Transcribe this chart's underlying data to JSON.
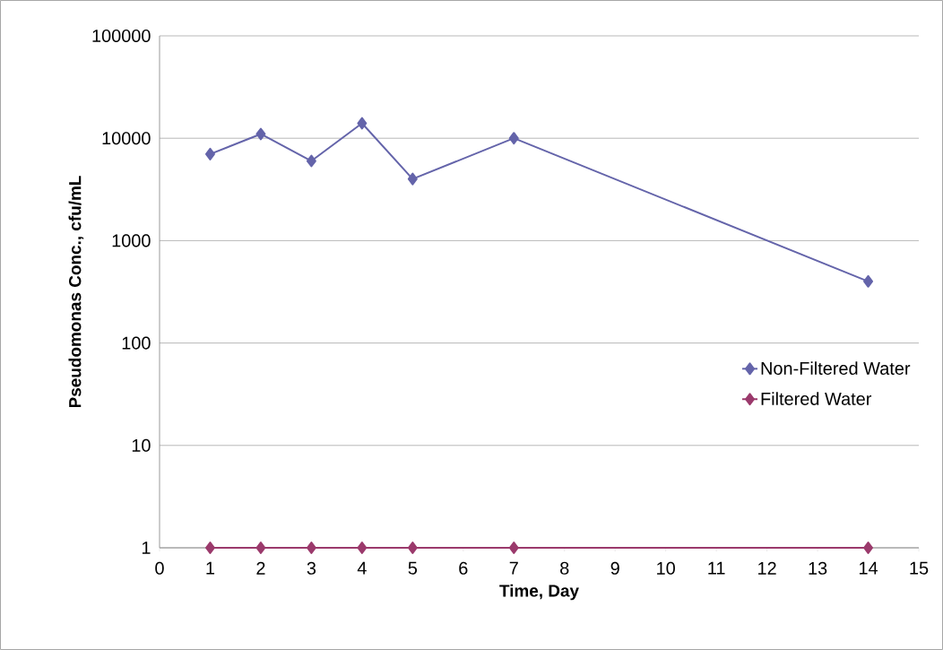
{
  "chart_data": {
    "type": "line",
    "xlabel": "Time, Day",
    "ylabel": "Pseudomonas Conc., cfu/mL",
    "x": [
      1,
      2,
      3,
      4,
      5,
      7,
      14
    ],
    "series": [
      {
        "name": "Non-Filtered Water",
        "color": "#6464aa",
        "values": [
          7000,
          11000,
          6000,
          14000,
          4000,
          10000,
          400
        ]
      },
      {
        "name": "Filtered Water",
        "color": "#9b3a6c",
        "values": [
          1,
          1,
          1,
          1,
          1,
          1,
          1
        ]
      }
    ],
    "xlim": [
      0,
      15
    ],
    "xticks": [
      0,
      1,
      2,
      3,
      4,
      5,
      6,
      7,
      8,
      9,
      10,
      11,
      12,
      13,
      14,
      15
    ],
    "ylim": [
      1,
      100000
    ],
    "yticks": [
      1,
      10,
      100,
      1000,
      10000,
      100000
    ],
    "log": "y",
    "grid": "y",
    "legend": "right",
    "marker": "diamond",
    "line_style": "solid"
  }
}
